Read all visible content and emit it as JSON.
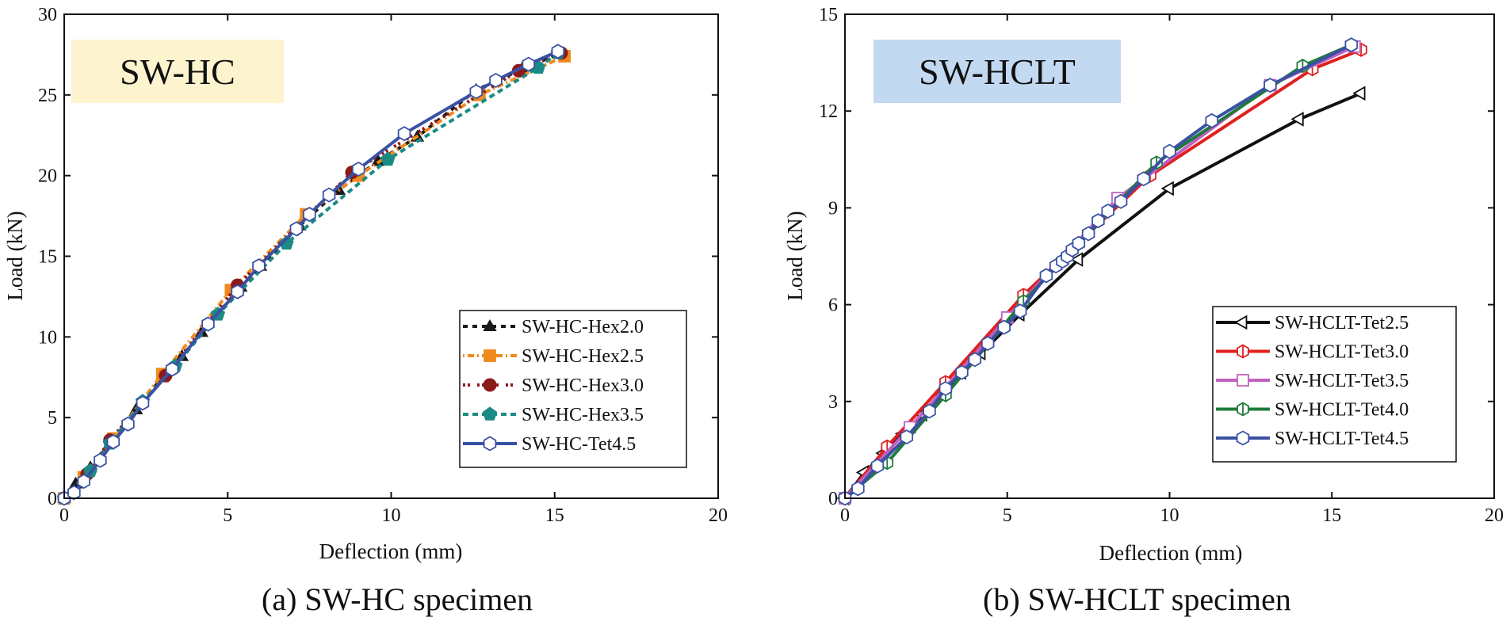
{
  "chart_data": [
    {
      "type": "line",
      "panel": "a",
      "title": "SW-HC",
      "title_box_color": "#fdf3cf",
      "xlabel": "Deflection (mm)",
      "ylabel": "Load (kN)",
      "xlim": [
        0,
        20
      ],
      "ylim": [
        0,
        30
      ],
      "xticks": [
        0,
        5,
        10,
        15,
        20
      ],
      "yticks": [
        0,
        5,
        10,
        15,
        20,
        25,
        30
      ],
      "legend_position": "bottom-right",
      "caption": "(a) SW-HC specimen",
      "series": [
        {
          "name": "SW-HC-Hex2.0",
          "color": "#1a1a1a",
          "dash": "6,6",
          "marker": "triangle-filled",
          "x": [
            0,
            0.35,
            0.8,
            1.4,
            2.2,
            3.0,
            3.6,
            4.2,
            5.4,
            6.0,
            7.2,
            8.4,
            9.6,
            10.8,
            12.6,
            14.0,
            15.2
          ],
          "y": [
            0,
            0.9,
            1.9,
            3.4,
            5.5,
            7.5,
            8.8,
            10.3,
            13.1,
            14.4,
            16.9,
            19.1,
            20.9,
            22.4,
            25.3,
            26.6,
            27.6
          ]
        },
        {
          "name": "SW-HC-Hex2.5",
          "color": "#f08a1e",
          "dash": "2,4,8,4",
          "marker": "square-filled",
          "x": [
            0,
            0.6,
            1.5,
            3.0,
            5.1,
            7.4,
            9.0,
            12.7,
            15.3
          ],
          "y": [
            0,
            1.3,
            3.7,
            7.7,
            12.9,
            17.6,
            20.0,
            25.0,
            27.4
          ]
        },
        {
          "name": "SW-HC-Hex3.0",
          "color": "#8b1a1a",
          "dash": "3,3,3,9",
          "marker": "circle-filled",
          "x": [
            0,
            0.7,
            1.4,
            3.1,
            5.3,
            8.8,
            13.9,
            15.2
          ],
          "y": [
            0,
            1.5,
            3.6,
            7.6,
            13.2,
            20.2,
            26.5,
            27.6
          ]
        },
        {
          "name": "SW-HC-Hex3.5",
          "color": "#1a8a84",
          "dash": "7,5",
          "marker": "pentagon-filled",
          "x": [
            0,
            0.8,
            1.4,
            2.4,
            3.4,
            4.7,
            6.8,
            9.9,
            14.5,
            15.1
          ],
          "y": [
            0,
            1.7,
            3.4,
            6.0,
            8.2,
            11.4,
            15.8,
            21.0,
            26.7,
            27.6
          ]
        },
        {
          "name": "SW-HC-Tet4.5",
          "color": "#3a51a3",
          "dash": "",
          "marker": "hexagon-open",
          "x": [
            0,
            0.3,
            0.6,
            1.1,
            1.5,
            1.95,
            2.4,
            3.3,
            4.4,
            5.3,
            5.95,
            7.1,
            7.5,
            8.1,
            9.0,
            10.4,
            12.6,
            13.2,
            14.2,
            15.1
          ],
          "y": [
            0,
            0.35,
            1.05,
            2.35,
            3.5,
            4.6,
            5.9,
            8.0,
            10.8,
            12.8,
            14.4,
            16.7,
            17.6,
            18.8,
            20.4,
            22.6,
            25.2,
            25.9,
            26.9,
            27.7
          ]
        }
      ]
    },
    {
      "type": "line",
      "panel": "b",
      "title": "SW-HCLT",
      "title_box_color": "#c3d9f2",
      "xlabel": "Deflection (mm)",
      "ylabel": "Load (kN)",
      "xlim": [
        0,
        20
      ],
      "ylim": [
        0,
        15
      ],
      "xticks": [
        0,
        5,
        10,
        15,
        20
      ],
      "yticks": [
        0,
        3,
        6,
        9,
        12,
        15
      ],
      "legend_position": "bottom-right",
      "caption": "(b) SW-HCLT specimen",
      "series": [
        {
          "name": "SW-HCLT-Tet2.5",
          "color": "#111111",
          "dash": "",
          "marker": "triangle-left-open",
          "x": [
            0,
            0.6,
            1.2,
            1.8,
            2.4,
            3.0,
            3.6,
            4.2,
            5.4,
            7.2,
            10.0,
            14.0,
            15.9
          ],
          "y": [
            0,
            0.8,
            1.4,
            2.0,
            2.6,
            3.2,
            3.9,
            4.5,
            5.7,
            7.4,
            9.6,
            11.75,
            12.55
          ]
        },
        {
          "name": "SW-HCLT-Tet3.0",
          "color": "#e02020",
          "dash": "",
          "marker": "hex-bar-open",
          "x": [
            0,
            1.3,
            3.1,
            5.5,
            9.4,
            14.4,
            15.9
          ],
          "y": [
            0,
            1.6,
            3.6,
            6.3,
            10.0,
            13.3,
            13.9
          ]
        },
        {
          "name": "SW-HCLT-Tet3.5",
          "color": "#c060c0",
          "dash": "",
          "marker": "square-open",
          "x": [
            0,
            2.0,
            5.0,
            8.4,
            13.1,
            15.7
          ],
          "y": [
            0,
            2.2,
            5.6,
            9.3,
            12.8,
            14.0
          ]
        },
        {
          "name": "SW-HCLT-Tet4.0",
          "color": "#1f7a3a",
          "dash": "",
          "marker": "hex-bar-open",
          "x": [
            0,
            1.3,
            3.1,
            5.5,
            9.6,
            14.1,
            15.6
          ],
          "y": [
            0,
            1.1,
            3.2,
            6.1,
            10.4,
            13.4,
            14.05
          ]
        },
        {
          "name": "SW-HCLT-Tet4.5",
          "color": "#3a51a3",
          "dash": "",
          "marker": "hexagon-open",
          "x": [
            0,
            0.4,
            1.0,
            1.9,
            2.6,
            3.1,
            3.6,
            4.0,
            4.4,
            4.9,
            5.4,
            6.2,
            6.5,
            6.7,
            6.85,
            7.0,
            7.2,
            7.5,
            7.8,
            8.1,
            8.5,
            9.2,
            10.0,
            11.3,
            13.1,
            15.6
          ],
          "y": [
            0,
            0.3,
            1.0,
            1.9,
            2.7,
            3.4,
            3.9,
            4.3,
            4.8,
            5.3,
            5.8,
            6.9,
            7.2,
            7.35,
            7.5,
            7.7,
            7.9,
            8.2,
            8.6,
            8.9,
            9.2,
            9.9,
            10.75,
            11.7,
            12.8,
            14.05
          ]
        }
      ]
    }
  ]
}
